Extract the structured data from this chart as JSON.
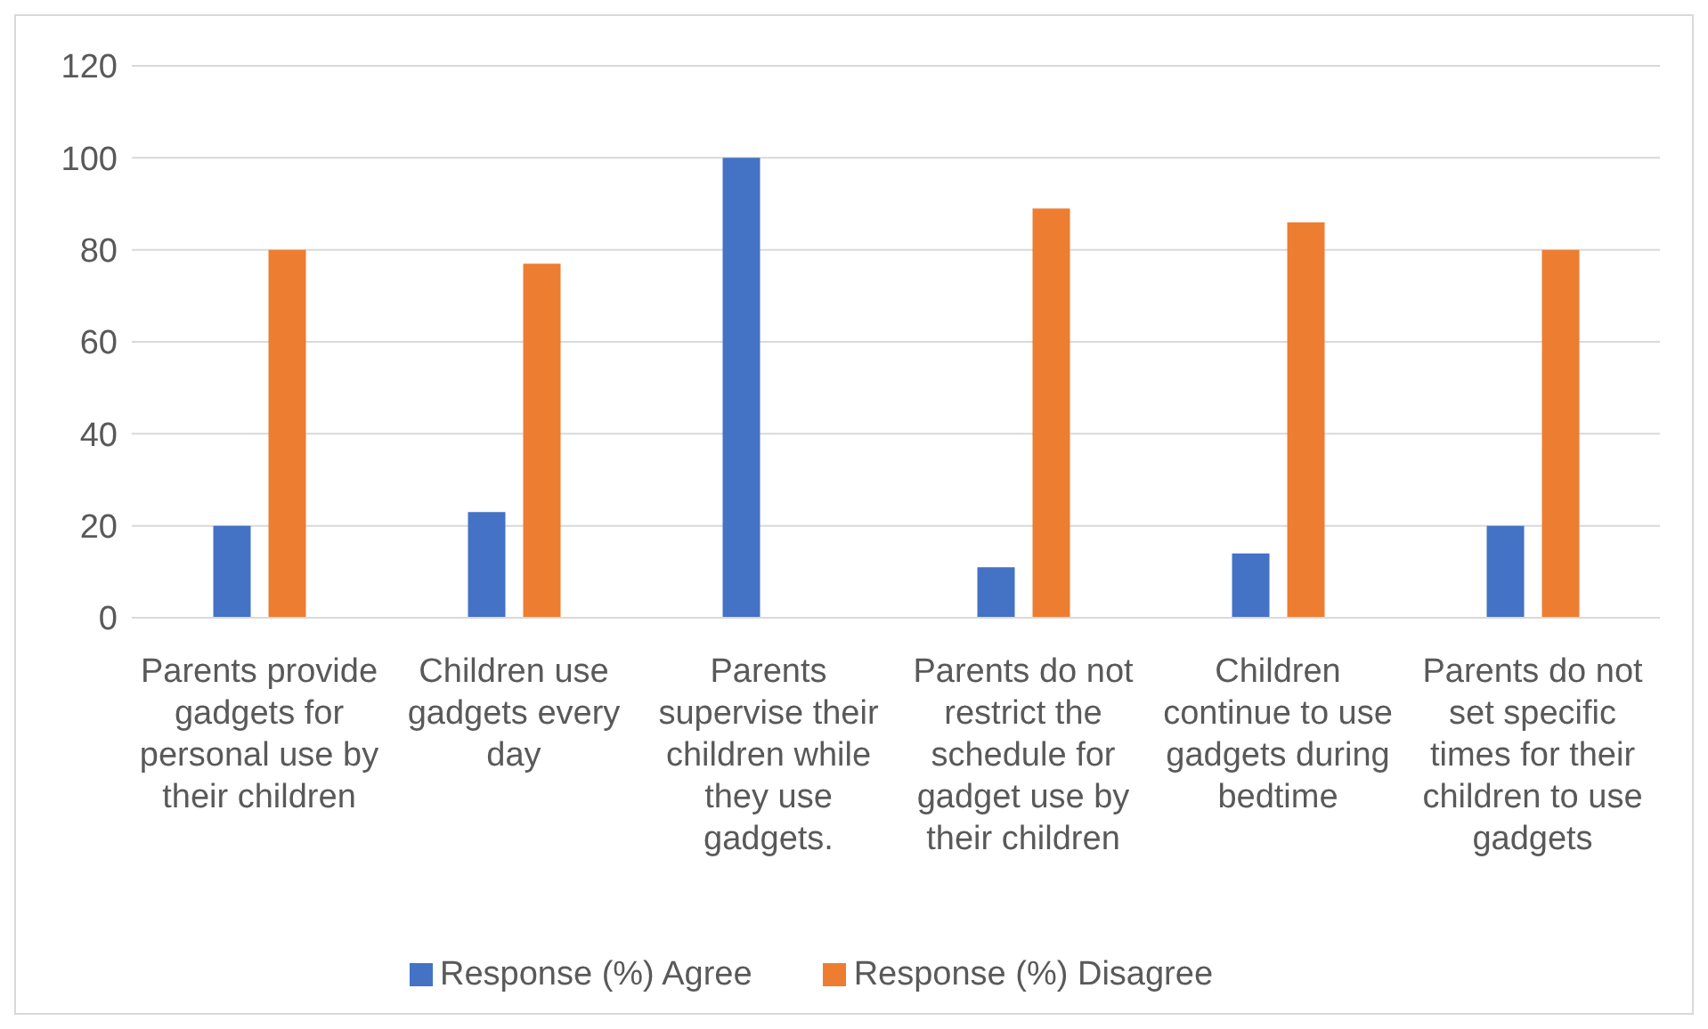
{
  "chart_data": {
    "type": "bar",
    "categories": [
      "Parents provide gadgets for personal use by their children",
      "Children use gadgets every day",
      "Parents supervise their children while they use gadgets.",
      "Parents do not restrict the schedule for gadget use by their children",
      "Children continue to use gadgets during bedtime",
      "Parents do not set specific times for their children to use gadgets"
    ],
    "series": [
      {
        "name": "Response (%) Agree",
        "color": "#4472c4",
        "values": [
          20,
          23,
          100,
          11,
          14,
          20
        ]
      },
      {
        "name": "Response (%) Disagree",
        "color": "#ed7d31",
        "values": [
          80,
          77,
          0,
          89,
          86,
          80
        ]
      }
    ],
    "ylim": [
      0,
      120
    ],
    "yticks": [
      0,
      20,
      40,
      60,
      80,
      100,
      120
    ],
    "grid": "y",
    "legend": "bottom"
  }
}
